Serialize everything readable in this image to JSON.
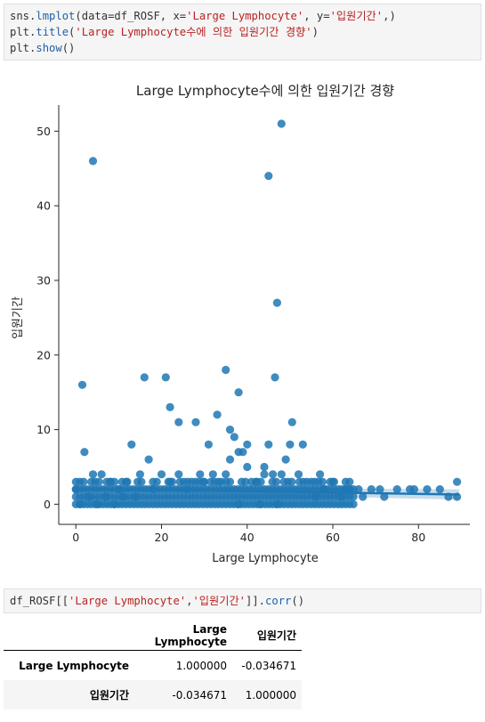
{
  "code_cells": [
    {
      "lines": [
        [
          {
            "t": "sns.",
            "c": ""
          },
          {
            "t": "lmplot",
            "c": "fn"
          },
          {
            "t": "(data=df_ROSF, x=",
            "c": ""
          },
          {
            "t": "'Large Lymphocyte'",
            "c": "str"
          },
          {
            "t": ", y=",
            "c": ""
          },
          {
            "t": "'입원기간'",
            "c": "str"
          },
          {
            "t": ",)",
            "c": ""
          }
        ],
        [
          {
            "t": "plt.",
            "c": ""
          },
          {
            "t": "title",
            "c": "fn"
          },
          {
            "t": "(",
            "c": ""
          },
          {
            "t": "'Large Lymphocyte수에 의한 입원기간 경향'",
            "c": "str"
          },
          {
            "t": ")",
            "c": ""
          }
        ],
        [
          {
            "t": "plt.",
            "c": ""
          },
          {
            "t": "show",
            "c": "fn"
          },
          {
            "t": "()",
            "c": ""
          }
        ]
      ]
    },
    {
      "lines": [
        [
          {
            "t": "df_ROSF[[",
            "c": ""
          },
          {
            "t": "'Large Lymphocyte'",
            "c": "str"
          },
          {
            "t": ",",
            "c": ""
          },
          {
            "t": "'입원기간'",
            "c": "str"
          },
          {
            "t": "]].",
            "c": ""
          },
          {
            "t": "corr",
            "c": "fn"
          },
          {
            "t": "()",
            "c": ""
          }
        ]
      ]
    }
  ],
  "chart_data": {
    "type": "scatter",
    "title": "Large Lymphocyte수에 의한 입원기간 경향",
    "xlabel": "Large Lymphocyte",
    "ylabel": "입원기간",
    "xlim": [
      -4,
      92
    ],
    "ylim": [
      -2.7,
      53.5
    ],
    "xticks": [
      0,
      20,
      40,
      60,
      80
    ],
    "yticks": [
      0,
      10,
      20,
      30,
      40,
      50
    ],
    "grid": false,
    "color": "#1f77b4",
    "points": [
      [
        4,
        46
      ],
      [
        45,
        44
      ],
      [
        48,
        51
      ],
      [
        47,
        27
      ],
      [
        1.5,
        16
      ],
      [
        16,
        17
      ],
      [
        21,
        17
      ],
      [
        22,
        13
      ],
      [
        35,
        18
      ],
      [
        38,
        15
      ],
      [
        46.5,
        17
      ],
      [
        24,
        11
      ],
      [
        28,
        11
      ],
      [
        33,
        12
      ],
      [
        36,
        10
      ],
      [
        37,
        9
      ],
      [
        13,
        8
      ],
      [
        17,
        6
      ],
      [
        31,
        8
      ],
      [
        40,
        8
      ],
      [
        45,
        8
      ],
      [
        50,
        8
      ],
      [
        53,
        8
      ],
      [
        50.5,
        11
      ],
      [
        2,
        7
      ],
      [
        40,
        5
      ],
      [
        44,
        5
      ],
      [
        44,
        4
      ],
      [
        49,
        6
      ],
      [
        38,
        7
      ],
      [
        39,
        7
      ],
      [
        36,
        6
      ],
      [
        35,
        4
      ],
      [
        41,
        3
      ],
      [
        46,
        4
      ],
      [
        4,
        4
      ],
      [
        6,
        4
      ],
      [
        8,
        3
      ],
      [
        15,
        4
      ],
      [
        20,
        4
      ],
      [
        27,
        3
      ],
      [
        29,
        4
      ],
      [
        34,
        3
      ],
      [
        42,
        3
      ],
      [
        48,
        4
      ],
      [
        52,
        4
      ],
      [
        55,
        3
      ],
      [
        57,
        4
      ],
      [
        60,
        3
      ],
      [
        63,
        2
      ],
      [
        66,
        2
      ],
      [
        69,
        2
      ],
      [
        71,
        2
      ],
      [
        75,
        2
      ],
      [
        79,
        2
      ],
      [
        82,
        2
      ],
      [
        85,
        2
      ],
      [
        87,
        1
      ],
      [
        89,
        3
      ],
      [
        89,
        1
      ],
      [
        10,
        2
      ],
      [
        12,
        3
      ],
      [
        14,
        1
      ],
      [
        18,
        2
      ],
      [
        22,
        3
      ],
      [
        24,
        4
      ],
      [
        26,
        2
      ],
      [
        30,
        3
      ],
      [
        32,
        4
      ],
      [
        38,
        0
      ],
      [
        43,
        0
      ],
      [
        47,
        0
      ],
      [
        0,
        2
      ],
      [
        1,
        0
      ],
      [
        3,
        1
      ],
      [
        5,
        0
      ],
      [
        7,
        1
      ],
      [
        9,
        0
      ],
      [
        11,
        1
      ],
      [
        56,
        1
      ],
      [
        58,
        2
      ],
      [
        62,
        1
      ],
      [
        64,
        2
      ],
      [
        67,
        1
      ],
      [
        72,
        1
      ],
      [
        78,
        2
      ]
    ],
    "dense_band": {
      "x_range": [
        0,
        65
      ],
      "y_values": [
        0,
        1,
        2,
        3
      ]
    },
    "regression": {
      "x": [
        0,
        89.5
      ],
      "y": [
        2.1,
        1.3
      ],
      "ci_halfwidth_start": 0.25,
      "ci_halfwidth_end": 0.7
    }
  },
  "corr_table": {
    "columns": [
      "",
      "Large Lymphocyte",
      "입원기간"
    ],
    "rows": [
      {
        "label": "Large Lymphocyte",
        "values": [
          "1.000000",
          "-0.034671"
        ]
      },
      {
        "label": "입원기간",
        "values": [
          "-0.034671",
          "1.000000"
        ]
      }
    ]
  }
}
